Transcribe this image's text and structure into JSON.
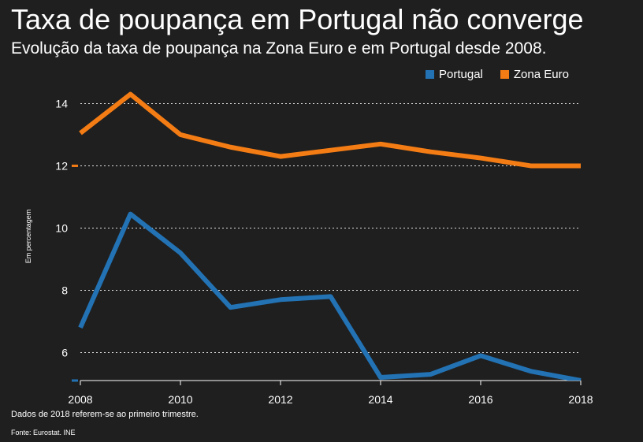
{
  "title": "Taxa de poupança em Portugal não converge",
  "subtitle": "Evolução da taxa de poupança na Zona Euro e em Portugal desde 2008.",
  "note": "Dados de 2018 referem-se ao primeiro trimestre.",
  "source": "Fonte: Eurostat. INE",
  "colors": {
    "background": "#1f1f1f",
    "portugal": "#2272b4",
    "zona_euro": "#f47c14",
    "grid": "#ffffff",
    "text": "#ffffff"
  },
  "chart_data": {
    "type": "line",
    "title": "Taxa de poupança em Portugal não converge",
    "subtitle": "Evolução da taxa de poupança na Zona Euro e em Portugal desde 2008.",
    "xlabel": "",
    "ylabel": "Em percentagem",
    "x": [
      2008,
      2009,
      2010,
      2011,
      2012,
      2013,
      2014,
      2015,
      2016,
      2017,
      2018
    ],
    "xticks": [
      "2008",
      "2010",
      "2012",
      "2014",
      "2016",
      "2018"
    ],
    "yticks": [
      "6",
      "8",
      "10",
      "12",
      "14"
    ],
    "xlim": [
      2008,
      2018
    ],
    "ylim": [
      5.1,
      15.1
    ],
    "grid": true,
    "legend_position": "top-right",
    "series": [
      {
        "name": "Portugal",
        "color": "#2272b4",
        "values": [
          6.8,
          10.45,
          9.2,
          7.45,
          7.7,
          7.8,
          5.2,
          5.3,
          5.9,
          5.4,
          5.1
        ]
      },
      {
        "name": "Zona Euro",
        "color": "#f47c14",
        "values": [
          13.05,
          14.3,
          13.0,
          12.6,
          12.3,
          12.5,
          12.7,
          12.45,
          12.25,
          12.0,
          12.0
        ]
      }
    ]
  }
}
